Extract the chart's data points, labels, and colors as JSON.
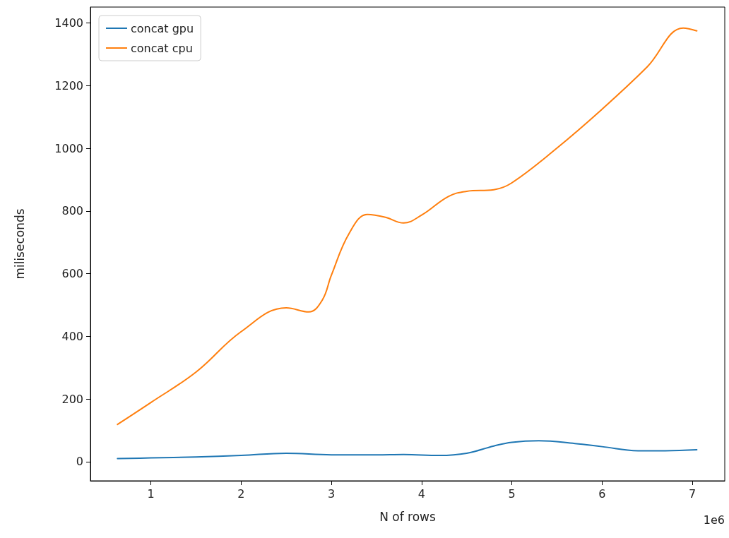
{
  "chart_data": {
    "type": "line",
    "xlabel": "N of rows",
    "ylabel": "miliseconds",
    "xlim": [
      0.33,
      7.36
    ],
    "xticks": [
      1,
      2,
      3,
      4,
      5,
      6,
      7
    ],
    "ylim": [
      -61,
      1451
    ],
    "yticks": [
      0,
      200,
      400,
      600,
      800,
      1000,
      1200,
      1400
    ],
    "grid": false,
    "legend": "top left",
    "marker": "none",
    "line_style": "solid",
    "annotations": [
      "1e6"
    ],
    "series": [
      {
        "name": "concat gpu",
        "color": "#1f77b4",
        "x": [
          0.63,
          1.0,
          1.5,
          2.0,
          2.5,
          3.0,
          3.5,
          3.8,
          4.2,
          4.5,
          4.8,
          5.0,
          5.3,
          5.7,
          6.0,
          6.4,
          6.7,
          7.05
        ],
        "values": [
          10,
          12,
          15,
          20,
          27,
          22,
          22,
          23,
          20,
          27,
          50,
          62,
          67,
          58,
          48,
          35,
          35,
          38
        ]
      },
      {
        "name": "concat cpu",
        "color": "#ff7f0e",
        "x": [
          0.63,
          1.0,
          1.5,
          2.0,
          2.5,
          2.75,
          2.9,
          3.0,
          3.2,
          3.4,
          3.6,
          3.8,
          4.0,
          4.3,
          4.5,
          4.8,
          5.0,
          5.5,
          6.0,
          6.5,
          6.9,
          7.05
        ],
        "values": [
          119,
          189,
          286,
          415,
          491,
          478,
          516,
          595,
          730,
          789,
          780,
          762,
          787,
          847,
          863,
          868,
          890,
          1001,
          1125,
          1260,
          1384,
          1375
        ]
      }
    ]
  }
}
